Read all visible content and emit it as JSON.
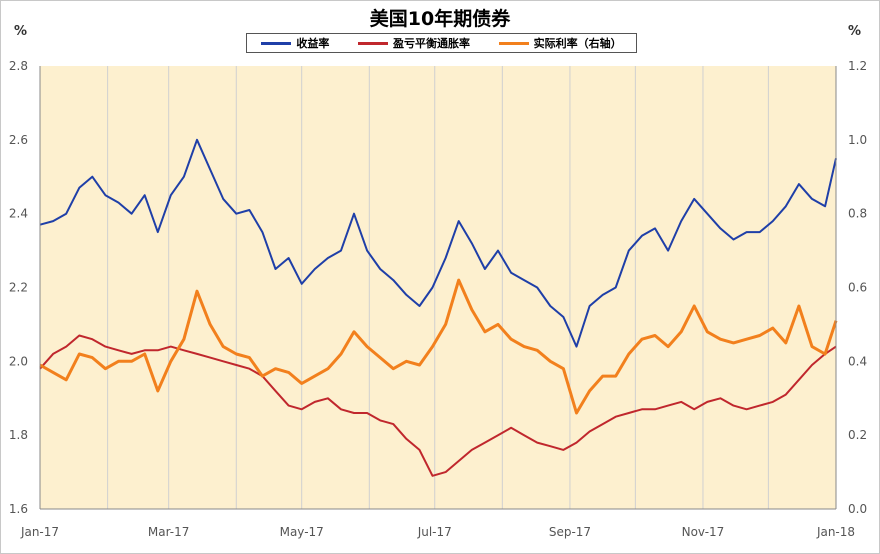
{
  "chart_data": {
    "type": "line",
    "title": "美国10年期债券",
    "left_unit": "%",
    "right_unit": "%",
    "x_tick_labels": [
      "Jan-17",
      "Mar-17",
      "May-17",
      "Jul-17",
      "Sep-17",
      "Nov-17",
      "Jan-18"
    ],
    "x_range": [
      "2017-01-01",
      "2018-01-01"
    ],
    "y_left": {
      "range": [
        1.6,
        2.8
      ],
      "ticks": [
        "1.6",
        "1.8",
        "2.0",
        "2.2",
        "2.4",
        "2.6",
        "2.8"
      ]
    },
    "y_right": {
      "range": [
        0.0,
        1.2
      ],
      "ticks": [
        "0.0",
        "0.2",
        "0.4",
        "0.6",
        "0.8",
        "1.0",
        "1.2"
      ]
    },
    "grid": "vertical-monthly",
    "legend_position": "top",
    "series": [
      {
        "name": "收益率",
        "axis": "left",
        "color": "#1f3fa8",
        "points": [
          [
            "2017-01-01",
            2.37
          ],
          [
            "2017-01-07",
            2.38
          ],
          [
            "2017-01-13",
            2.4
          ],
          [
            "2017-01-19",
            2.47
          ],
          [
            "2017-01-25",
            2.5
          ],
          [
            "2017-01-31",
            2.45
          ],
          [
            "2017-02-06",
            2.43
          ],
          [
            "2017-02-12",
            2.4
          ],
          [
            "2017-02-18",
            2.45
          ],
          [
            "2017-02-24",
            2.35
          ],
          [
            "2017-03-02",
            2.45
          ],
          [
            "2017-03-08",
            2.5
          ],
          [
            "2017-03-14",
            2.6
          ],
          [
            "2017-03-20",
            2.52
          ],
          [
            "2017-03-26",
            2.44
          ],
          [
            "2017-04-01",
            2.4
          ],
          [
            "2017-04-07",
            2.41
          ],
          [
            "2017-04-13",
            2.35
          ],
          [
            "2017-04-19",
            2.25
          ],
          [
            "2017-04-25",
            2.28
          ],
          [
            "2017-05-01",
            2.21
          ],
          [
            "2017-05-07",
            2.25
          ],
          [
            "2017-05-13",
            2.28
          ],
          [
            "2017-05-19",
            2.3
          ],
          [
            "2017-05-25",
            2.4
          ],
          [
            "2017-05-31",
            2.3
          ],
          [
            "2017-06-06",
            2.25
          ],
          [
            "2017-06-12",
            2.22
          ],
          [
            "2017-06-18",
            2.18
          ],
          [
            "2017-06-24",
            2.15
          ],
          [
            "2017-06-30",
            2.2
          ],
          [
            "2017-07-06",
            2.28
          ],
          [
            "2017-07-12",
            2.38
          ],
          [
            "2017-07-18",
            2.32
          ],
          [
            "2017-07-24",
            2.25
          ],
          [
            "2017-07-30",
            2.3
          ],
          [
            "2017-08-05",
            2.24
          ],
          [
            "2017-08-11",
            2.22
          ],
          [
            "2017-08-17",
            2.2
          ],
          [
            "2017-08-23",
            2.15
          ],
          [
            "2017-08-29",
            2.12
          ],
          [
            "2017-09-04",
            2.04
          ],
          [
            "2017-09-10",
            2.15
          ],
          [
            "2017-09-16",
            2.18
          ],
          [
            "2017-09-22",
            2.2
          ],
          [
            "2017-09-28",
            2.3
          ],
          [
            "2017-10-04",
            2.34
          ],
          [
            "2017-10-10",
            2.36
          ],
          [
            "2017-10-16",
            2.3
          ],
          [
            "2017-10-22",
            2.38
          ],
          [
            "2017-10-28",
            2.44
          ],
          [
            "2017-11-03",
            2.4
          ],
          [
            "2017-11-09",
            2.36
          ],
          [
            "2017-11-15",
            2.33
          ],
          [
            "2017-11-21",
            2.35
          ],
          [
            "2017-11-27",
            2.35
          ],
          [
            "2017-12-03",
            2.38
          ],
          [
            "2017-12-09",
            2.42
          ],
          [
            "2017-12-15",
            2.48
          ],
          [
            "2017-12-21",
            2.44
          ],
          [
            "2017-12-27",
            2.42
          ],
          [
            "2018-01-01",
            2.55
          ]
        ]
      },
      {
        "name": "盈亏平衡通胀率",
        "axis": "left",
        "color": "#c0272d",
        "points": [
          [
            "2017-01-01",
            1.98
          ],
          [
            "2017-01-07",
            2.02
          ],
          [
            "2017-01-13",
            2.04
          ],
          [
            "2017-01-19",
            2.07
          ],
          [
            "2017-01-25",
            2.06
          ],
          [
            "2017-01-31",
            2.04
          ],
          [
            "2017-02-06",
            2.03
          ],
          [
            "2017-02-12",
            2.02
          ],
          [
            "2017-02-18",
            2.03
          ],
          [
            "2017-02-24",
            2.03
          ],
          [
            "2017-03-02",
            2.04
          ],
          [
            "2017-03-08",
            2.03
          ],
          [
            "2017-03-14",
            2.02
          ],
          [
            "2017-03-20",
            2.01
          ],
          [
            "2017-03-26",
            2.0
          ],
          [
            "2017-04-01",
            1.99
          ],
          [
            "2017-04-07",
            1.98
          ],
          [
            "2017-04-13",
            1.96
          ],
          [
            "2017-04-19",
            1.92
          ],
          [
            "2017-04-25",
            1.88
          ],
          [
            "2017-05-01",
            1.87
          ],
          [
            "2017-05-07",
            1.89
          ],
          [
            "2017-05-13",
            1.9
          ],
          [
            "2017-05-19",
            1.87
          ],
          [
            "2017-05-25",
            1.86
          ],
          [
            "2017-05-31",
            1.86
          ],
          [
            "2017-06-06",
            1.84
          ],
          [
            "2017-06-12",
            1.83
          ],
          [
            "2017-06-18",
            1.79
          ],
          [
            "2017-06-24",
            1.76
          ],
          [
            "2017-06-30",
            1.69
          ],
          [
            "2017-07-06",
            1.7
          ],
          [
            "2017-07-12",
            1.73
          ],
          [
            "2017-07-18",
            1.76
          ],
          [
            "2017-07-24",
            1.78
          ],
          [
            "2017-07-30",
            1.8
          ],
          [
            "2017-08-05",
            1.82
          ],
          [
            "2017-08-11",
            1.8
          ],
          [
            "2017-08-17",
            1.78
          ],
          [
            "2017-08-23",
            1.77
          ],
          [
            "2017-08-29",
            1.76
          ],
          [
            "2017-09-04",
            1.78
          ],
          [
            "2017-09-10",
            1.81
          ],
          [
            "2017-09-16",
            1.83
          ],
          [
            "2017-09-22",
            1.85
          ],
          [
            "2017-09-28",
            1.86
          ],
          [
            "2017-10-04",
            1.87
          ],
          [
            "2017-10-10",
            1.87
          ],
          [
            "2017-10-16",
            1.88
          ],
          [
            "2017-10-22",
            1.89
          ],
          [
            "2017-10-28",
            1.87
          ],
          [
            "2017-11-03",
            1.89
          ],
          [
            "2017-11-09",
            1.9
          ],
          [
            "2017-11-15",
            1.88
          ],
          [
            "2017-11-21",
            1.87
          ],
          [
            "2017-11-27",
            1.88
          ],
          [
            "2017-12-03",
            1.89
          ],
          [
            "2017-12-09",
            1.91
          ],
          [
            "2017-12-15",
            1.95
          ],
          [
            "2017-12-21",
            1.99
          ],
          [
            "2017-12-27",
            2.02
          ],
          [
            "2018-01-01",
            2.04
          ]
        ]
      },
      {
        "name": "实际利率（右轴）",
        "axis": "right",
        "color": "#f2801d",
        "points": [
          [
            "2017-01-01",
            0.39
          ],
          [
            "2017-01-07",
            0.37
          ],
          [
            "2017-01-13",
            0.35
          ],
          [
            "2017-01-19",
            0.42
          ],
          [
            "2017-01-25",
            0.41
          ],
          [
            "2017-01-31",
            0.38
          ],
          [
            "2017-02-06",
            0.4
          ],
          [
            "2017-02-12",
            0.4
          ],
          [
            "2017-02-18",
            0.42
          ],
          [
            "2017-02-24",
            0.32
          ],
          [
            "2017-03-02",
            0.4
          ],
          [
            "2017-03-08",
            0.46
          ],
          [
            "2017-03-14",
            0.59
          ],
          [
            "2017-03-20",
            0.5
          ],
          [
            "2017-03-26",
            0.44
          ],
          [
            "2017-04-01",
            0.42
          ],
          [
            "2017-04-07",
            0.41
          ],
          [
            "2017-04-13",
            0.36
          ],
          [
            "2017-04-19",
            0.38
          ],
          [
            "2017-04-25",
            0.37
          ],
          [
            "2017-05-01",
            0.34
          ],
          [
            "2017-05-07",
            0.36
          ],
          [
            "2017-05-13",
            0.38
          ],
          [
            "2017-05-19",
            0.42
          ],
          [
            "2017-05-25",
            0.48
          ],
          [
            "2017-05-31",
            0.44
          ],
          [
            "2017-06-06",
            0.41
          ],
          [
            "2017-06-12",
            0.38
          ],
          [
            "2017-06-18",
            0.4
          ],
          [
            "2017-06-24",
            0.39
          ],
          [
            "2017-06-30",
            0.44
          ],
          [
            "2017-07-06",
            0.5
          ],
          [
            "2017-07-12",
            0.62
          ],
          [
            "2017-07-18",
            0.54
          ],
          [
            "2017-07-24",
            0.48
          ],
          [
            "2017-07-30",
            0.5
          ],
          [
            "2017-08-05",
            0.46
          ],
          [
            "2017-08-11",
            0.44
          ],
          [
            "2017-08-17",
            0.43
          ],
          [
            "2017-08-23",
            0.4
          ],
          [
            "2017-08-29",
            0.38
          ],
          [
            "2017-09-04",
            0.26
          ],
          [
            "2017-09-10",
            0.32
          ],
          [
            "2017-09-16",
            0.36
          ],
          [
            "2017-09-22",
            0.36
          ],
          [
            "2017-09-28",
            0.42
          ],
          [
            "2017-10-04",
            0.46
          ],
          [
            "2017-10-10",
            0.47
          ],
          [
            "2017-10-16",
            0.44
          ],
          [
            "2017-10-22",
            0.48
          ],
          [
            "2017-10-28",
            0.55
          ],
          [
            "2017-11-03",
            0.48
          ],
          [
            "2017-11-09",
            0.46
          ],
          [
            "2017-11-15",
            0.45
          ],
          [
            "2017-11-21",
            0.46
          ],
          [
            "2017-11-27",
            0.47
          ],
          [
            "2017-12-03",
            0.49
          ],
          [
            "2017-12-09",
            0.45
          ],
          [
            "2017-12-15",
            0.55
          ],
          [
            "2017-12-21",
            0.44
          ],
          [
            "2017-12-27",
            0.42
          ],
          [
            "2018-01-01",
            0.51
          ]
        ]
      }
    ]
  }
}
